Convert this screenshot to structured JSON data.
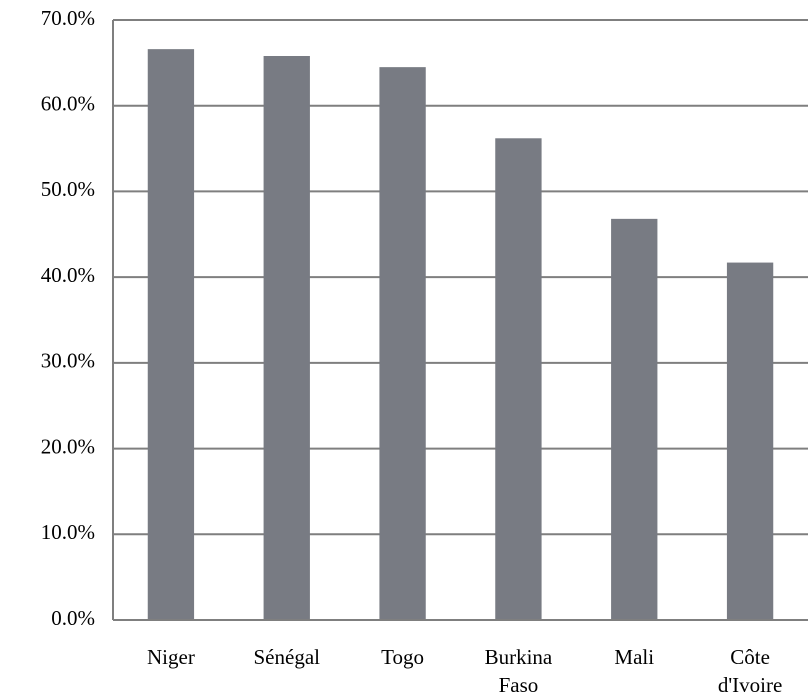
{
  "chart_data": {
    "type": "bar",
    "title": "",
    "xlabel": "",
    "ylabel": "",
    "categories": [
      [
        "Niger"
      ],
      [
        "Sénégal"
      ],
      [
        "Togo"
      ],
      [
        "Burkina",
        "Faso"
      ],
      [
        "Mali"
      ],
      [
        "Côte",
        "d'Ivoire"
      ]
    ],
    "values": [
      66.6,
      65.8,
      64.5,
      56.2,
      46.8,
      41.7
    ],
    "ylim": [
      0,
      70
    ],
    "yticks": [
      "0.0%",
      "10.0%",
      "20.0%",
      "30.0%",
      "40.0%",
      "50.0%",
      "60.0%",
      "70.0%"
    ],
    "ytick_values": [
      0,
      10,
      20,
      30,
      40,
      50,
      60,
      70
    ],
    "grid": true,
    "legend": "none",
    "bar_color": "#787b83",
    "grid_color": "#7f7f7f"
  }
}
